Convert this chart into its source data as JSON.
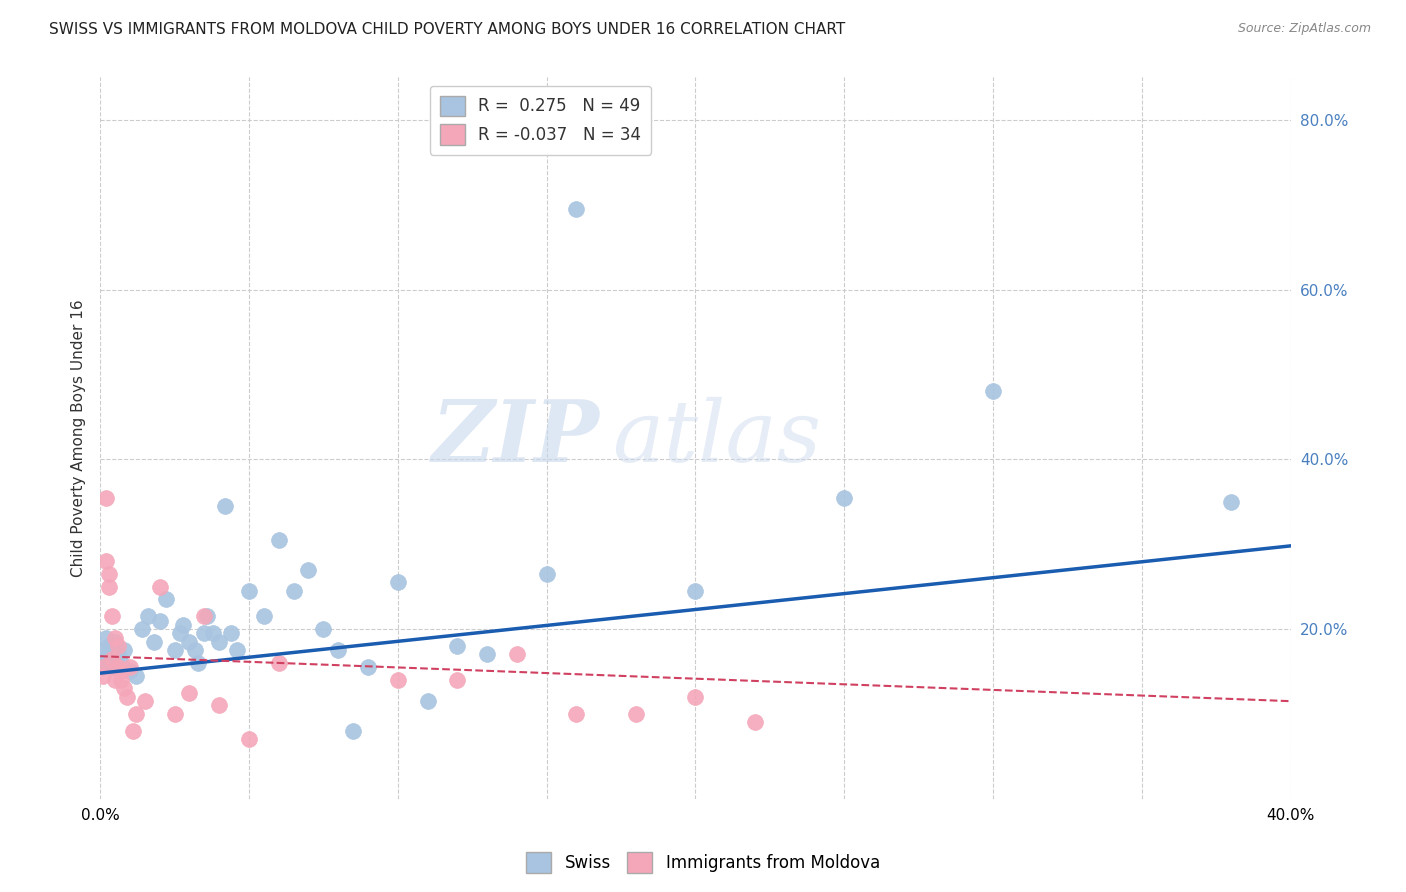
{
  "title": "SWISS VS IMMIGRANTS FROM MOLDOVA CHILD POVERTY AMONG BOYS UNDER 16 CORRELATION CHART",
  "source": "Source: ZipAtlas.com",
  "ylabel": "Child Poverty Among Boys Under 16",
  "xlim": [
    0.0,
    0.4
  ],
  "ylim": [
    0.0,
    0.85
  ],
  "swiss_color": "#a8c4e0",
  "moldova_color": "#f4a7b9",
  "swiss_line_color": "#1a5cb0",
  "moldova_line_color": "#d04060",
  "R_swiss": 0.275,
  "N_swiss": 49,
  "R_moldova": -0.037,
  "N_moldova": 34,
  "swiss_x": [
    0.001,
    0.001,
    0.002,
    0.002,
    0.003,
    0.004,
    0.005,
    0.006,
    0.007,
    0.008,
    0.01,
    0.012,
    0.014,
    0.016,
    0.018,
    0.02,
    0.022,
    0.025,
    0.027,
    0.028,
    0.03,
    0.032,
    0.033,
    0.035,
    0.036,
    0.038,
    0.04,
    0.042,
    0.044,
    0.046,
    0.05,
    0.055,
    0.06,
    0.065,
    0.07,
    0.075,
    0.08,
    0.085,
    0.09,
    0.1,
    0.11,
    0.12,
    0.13,
    0.15,
    0.16,
    0.2,
    0.25,
    0.3,
    0.38
  ],
  "swiss_y": [
    0.175,
    0.165,
    0.19,
    0.16,
    0.18,
    0.155,
    0.185,
    0.17,
    0.16,
    0.175,
    0.15,
    0.145,
    0.2,
    0.215,
    0.185,
    0.21,
    0.235,
    0.175,
    0.195,
    0.205,
    0.185,
    0.175,
    0.16,
    0.195,
    0.215,
    0.195,
    0.185,
    0.345,
    0.195,
    0.175,
    0.245,
    0.215,
    0.305,
    0.245,
    0.27,
    0.2,
    0.175,
    0.08,
    0.155,
    0.255,
    0.115,
    0.18,
    0.17,
    0.265,
    0.695,
    0.245,
    0.355,
    0.48,
    0.35
  ],
  "moldova_x": [
    0.001,
    0.001,
    0.002,
    0.002,
    0.003,
    0.003,
    0.004,
    0.004,
    0.005,
    0.005,
    0.006,
    0.006,
    0.007,
    0.007,
    0.008,
    0.009,
    0.01,
    0.011,
    0.012,
    0.015,
    0.02,
    0.025,
    0.03,
    0.035,
    0.04,
    0.05,
    0.06,
    0.1,
    0.12,
    0.14,
    0.16,
    0.18,
    0.2,
    0.22
  ],
  "moldova_y": [
    0.155,
    0.145,
    0.355,
    0.28,
    0.265,
    0.25,
    0.165,
    0.215,
    0.14,
    0.19,
    0.155,
    0.18,
    0.14,
    0.15,
    0.13,
    0.12,
    0.155,
    0.08,
    0.1,
    0.115,
    0.25,
    0.1,
    0.125,
    0.215,
    0.11,
    0.07,
    0.16,
    0.14,
    0.14,
    0.17,
    0.1,
    0.1,
    0.12,
    0.09
  ],
  "swiss_line_x0": 0.0,
  "swiss_line_y0": 0.148,
  "swiss_line_x1": 0.4,
  "swiss_line_y1": 0.298,
  "moldova_line_x0": 0.0,
  "moldova_line_y0": 0.168,
  "moldova_line_x1": 0.4,
  "moldova_line_y1": 0.115,
  "watermark_zip": "ZIP",
  "watermark_atlas": "atlas",
  "grid_color": "#cccccc",
  "background_color": "#ffffff",
  "title_fontsize": 11,
  "legend_swiss_label": "Swiss",
  "legend_moldova_label": "Immigrants from Moldova"
}
